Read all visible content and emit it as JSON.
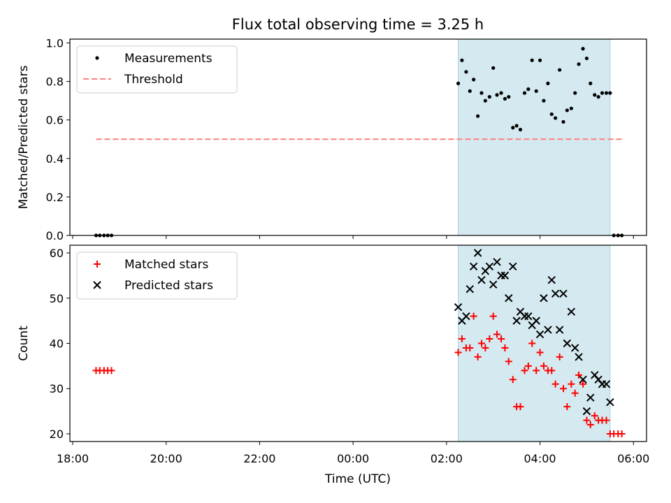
{
  "chart_data": {
    "title": "Flux total observing time = 3.25 h",
    "x_axis": {
      "label": "Time (UTC)",
      "ticks": [
        {
          "value": -6,
          "label": "18:00"
        },
        {
          "value": -4,
          "label": "20:00"
        },
        {
          "value": -2,
          "label": "22:00"
        },
        {
          "value": 0,
          "label": "00:00"
        },
        {
          "value": 2,
          "label": "02:00"
        },
        {
          "value": 4,
          "label": "04:00"
        },
        {
          "value": 6,
          "label": "06:00"
        }
      ],
      "range_hours": [
        -6.06,
        6.28
      ],
      "units_note": "hours relative to 00:00 UTC"
    },
    "shaded_interval_hours": [
      2.25,
      5.5
    ],
    "shade_color": "#d4eaf0",
    "panels": [
      {
        "type": "scatter",
        "ylabel": "Matched/Predicted stars",
        "ylim": [
          0,
          1.02
        ],
        "yticks": [
          "0.0",
          "0.2",
          "0.4",
          "0.6",
          "0.8",
          "1.0"
        ],
        "legend_position": "top-left",
        "series": [
          {
            "name": "Measurements",
            "marker": "dot",
            "color": "#000000",
            "points": [
              [
                -5.5,
                0.0
              ],
              [
                -5.42,
                0.0
              ],
              [
                -5.33,
                0.0
              ],
              [
                -5.25,
                0.0
              ],
              [
                -5.17,
                0.0
              ],
              [
                2.25,
                0.79
              ],
              [
                2.33,
                0.91
              ],
              [
                2.42,
                0.85
              ],
              [
                2.5,
                0.75
              ],
              [
                2.58,
                0.81
              ],
              [
                2.67,
                0.62
              ],
              [
                2.75,
                0.74
              ],
              [
                2.83,
                0.7
              ],
              [
                2.92,
                0.72
              ],
              [
                3.0,
                0.87
              ],
              [
                3.08,
                0.73
              ],
              [
                3.17,
                0.74
              ],
              [
                3.25,
                0.71
              ],
              [
                3.33,
                0.72
              ],
              [
                3.42,
                0.56
              ],
              [
                3.5,
                0.57
              ],
              [
                3.58,
                0.55
              ],
              [
                3.67,
                0.74
              ],
              [
                3.75,
                0.76
              ],
              [
                3.83,
                0.91
              ],
              [
                3.92,
                0.75
              ],
              [
                4.0,
                0.91
              ],
              [
                4.08,
                0.7
              ],
              [
                4.17,
                0.79
              ],
              [
                4.25,
                0.63
              ],
              [
                4.33,
                0.61
              ],
              [
                4.42,
                0.86
              ],
              [
                4.5,
                0.59
              ],
              [
                4.58,
                0.65
              ],
              [
                4.67,
                0.66
              ],
              [
                4.75,
                0.74
              ],
              [
                4.83,
                0.89
              ],
              [
                4.92,
                0.97
              ],
              [
                5.0,
                0.92
              ],
              [
                5.08,
                0.79
              ],
              [
                5.17,
                0.73
              ],
              [
                5.25,
                0.72
              ],
              [
                5.33,
                0.74
              ],
              [
                5.42,
                0.74
              ],
              [
                5.5,
                0.74
              ],
              [
                5.58,
                0.0
              ],
              [
                5.67,
                0.0
              ],
              [
                5.75,
                0.0
              ]
            ]
          },
          {
            "name": "Threshold",
            "marker": "dashed-line",
            "color": "#ff7f7f",
            "points": [
              [
                -5.5,
                0.5
              ],
              [
                5.75,
                0.5
              ]
            ]
          }
        ]
      },
      {
        "type": "scatter",
        "ylabel": "Count",
        "ylim": [
          18.3,
          61.7
        ],
        "yticks": [
          "20",
          "30",
          "40",
          "50",
          "60"
        ],
        "legend_position": "top-left",
        "series": [
          {
            "name": "Matched stars",
            "marker": "plus",
            "color": "#ff0000",
            "points": [
              [
                -5.5,
                34
              ],
              [
                -5.42,
                34
              ],
              [
                -5.33,
                34
              ],
              [
                -5.25,
                34
              ],
              [
                -5.17,
                34
              ],
              [
                2.25,
                38
              ],
              [
                2.33,
                41
              ],
              [
                2.42,
                39
              ],
              [
                2.5,
                39
              ],
              [
                2.58,
                46
              ],
              [
                2.67,
                37
              ],
              [
                2.75,
                40
              ],
              [
                2.83,
                39
              ],
              [
                2.92,
                41
              ],
              [
                3.0,
                46
              ],
              [
                3.08,
                42
              ],
              [
                3.17,
                41
              ],
              [
                3.25,
                39
              ],
              [
                3.33,
                36
              ],
              [
                3.42,
                32
              ],
              [
                3.5,
                26
              ],
              [
                3.58,
                26
              ],
              [
                3.67,
                34
              ],
              [
                3.75,
                35
              ],
              [
                3.83,
                40
              ],
              [
                3.92,
                34
              ],
              [
                4.0,
                38
              ],
              [
                4.08,
                35
              ],
              [
                4.17,
                34
              ],
              [
                4.25,
                34
              ],
              [
                4.33,
                31
              ],
              [
                4.42,
                37
              ],
              [
                4.5,
                30
              ],
              [
                4.58,
                26
              ],
              [
                4.67,
                31
              ],
              [
                4.75,
                29
              ],
              [
                4.83,
                33
              ],
              [
                4.92,
                31
              ],
              [
                5.0,
                23
              ],
              [
                5.08,
                22
              ],
              [
                5.17,
                24
              ],
              [
                5.25,
                23
              ],
              [
                5.33,
                23
              ],
              [
                5.42,
                23
              ],
              [
                5.5,
                20
              ],
              [
                5.58,
                20
              ],
              [
                5.67,
                20
              ],
              [
                5.75,
                20
              ]
            ]
          },
          {
            "name": "Predicted stars",
            "marker": "x",
            "color": "#000000",
            "points": [
              [
                2.25,
                48
              ],
              [
                2.33,
                45
              ],
              [
                2.42,
                46
              ],
              [
                2.5,
                52
              ],
              [
                2.58,
                57
              ],
              [
                2.67,
                60
              ],
              [
                2.75,
                54
              ],
              [
                2.83,
                56
              ],
              [
                2.92,
                57
              ],
              [
                3.0,
                53
              ],
              [
                3.08,
                58
              ],
              [
                3.17,
                55
              ],
              [
                3.25,
                55
              ],
              [
                3.33,
                50
              ],
              [
                3.42,
                57
              ],
              [
                3.5,
                45
              ],
              [
                3.58,
                47
              ],
              [
                3.67,
                46
              ],
              [
                3.75,
                46
              ],
              [
                3.83,
                44
              ],
              [
                3.92,
                45
              ],
              [
                4.0,
                42
              ],
              [
                4.08,
                50
              ],
              [
                4.17,
                43
              ],
              [
                4.25,
                54
              ],
              [
                4.33,
                51
              ],
              [
                4.42,
                43
              ],
              [
                4.5,
                51
              ],
              [
                4.58,
                40
              ],
              [
                4.67,
                47
              ],
              [
                4.75,
                39
              ],
              [
                4.83,
                37
              ],
              [
                4.92,
                32
              ],
              [
                5.0,
                25
              ],
              [
                5.08,
                28
              ],
              [
                5.17,
                33
              ],
              [
                5.25,
                32
              ],
              [
                5.33,
                31
              ],
              [
                5.42,
                31
              ],
              [
                5.5,
                27
              ]
            ]
          }
        ]
      }
    ]
  }
}
